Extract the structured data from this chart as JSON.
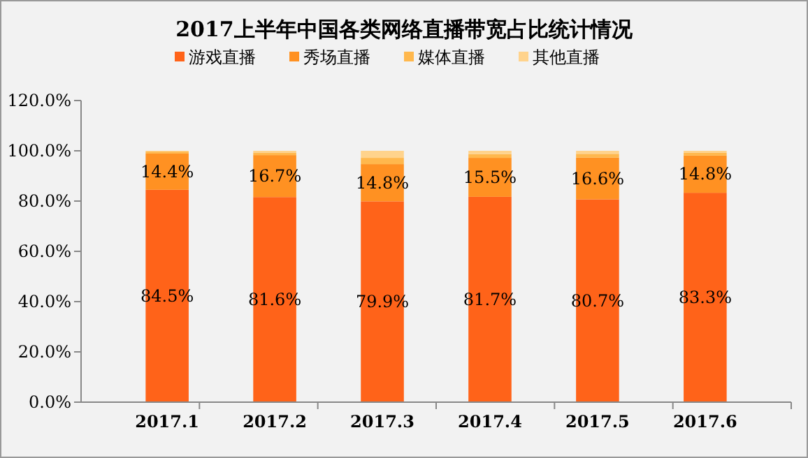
{
  "chart_data": {
    "type": "bar",
    "title": "2017上半年中国各类网络直播带宽占比统计情况",
    "categories": [
      "2017.1",
      "2017.2",
      "2017.3",
      "2017.4",
      "2017.5",
      "2017.6"
    ],
    "stacked": true,
    "legend": "top",
    "ylim": [
      0,
      120
    ],
    "yticks": [
      {
        "value": 0,
        "label": "0.0%"
      },
      {
        "value": 20,
        "label": "20.0%"
      },
      {
        "value": 40,
        "label": "40.0%"
      },
      {
        "value": 60,
        "label": "60.0%"
      },
      {
        "value": 80,
        "label": "80.0%"
      },
      {
        "value": 100,
        "label": "100.0%"
      },
      {
        "value": 120,
        "label": "120.0%"
      }
    ],
    "series": [
      {
        "name": "游戏直播",
        "color": "#ff6319",
        "values": [
          84.5,
          81.6,
          79.9,
          81.7,
          80.7,
          83.3
        ],
        "value_labels": [
          "84.5%",
          "81.6%",
          "79.9%",
          "81.7%",
          "80.7%",
          "83.3%"
        ]
      },
      {
        "name": "秀场直播",
        "color": "#ff9122",
        "values": [
          14.4,
          16.7,
          14.8,
          15.5,
          16.6,
          14.8
        ],
        "value_labels": [
          "14.4%",
          "16.7%",
          "14.8%",
          "15.5%",
          "16.6%",
          "14.8%"
        ]
      },
      {
        "name": "媒体直播",
        "color": "#ffb84d",
        "values": [
          0.8,
          1.0,
          2.5,
          1.5,
          1.5,
          1.1
        ]
      },
      {
        "name": "其他直播",
        "color": "#ffd38c",
        "values": [
          0.3,
          0.7,
          2.8,
          1.3,
          1.2,
          0.8
        ]
      }
    ]
  }
}
